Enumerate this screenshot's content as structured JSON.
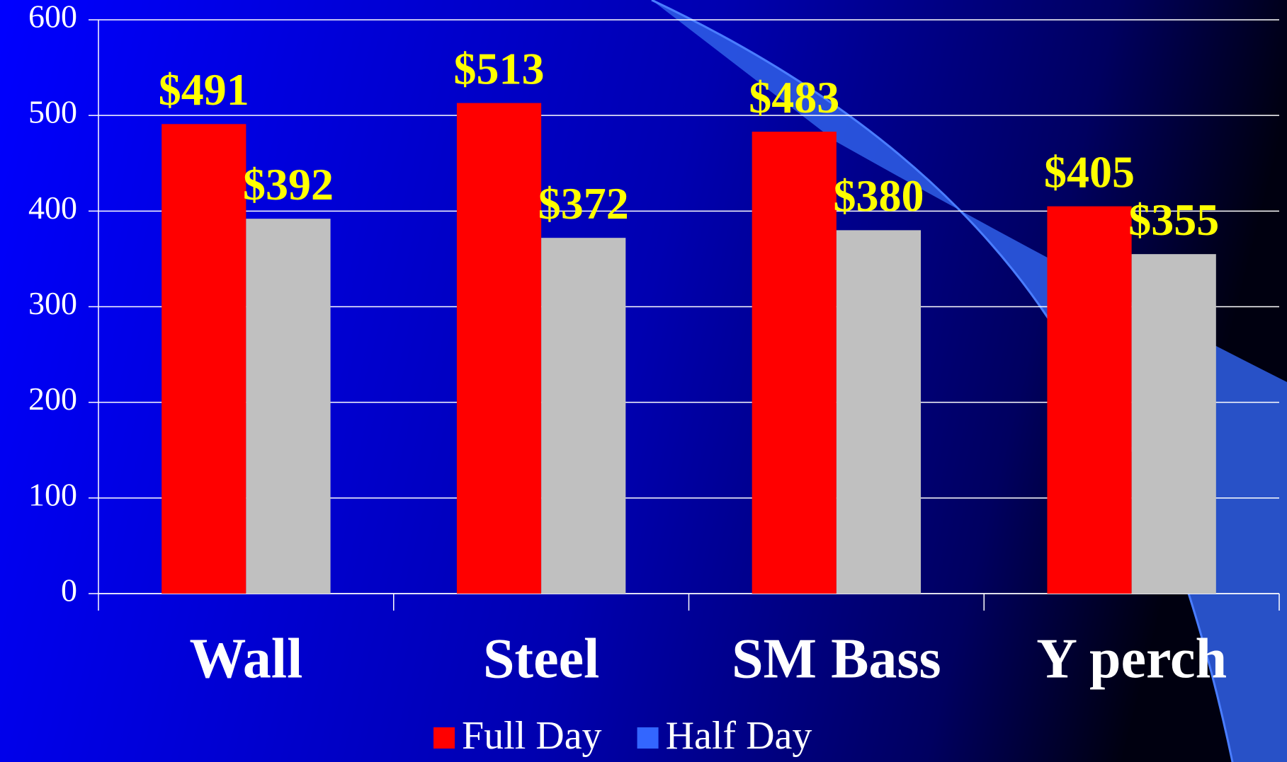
{
  "chart_data": {
    "type": "bar",
    "categories": [
      "Wall",
      "Steel",
      "SM Bass",
      "Y perch"
    ],
    "series": [
      {
        "name": "Full Day",
        "color": "#ff0000",
        "legend_color": "#ff0000",
        "values": [
          491,
          513,
          483,
          405
        ],
        "value_labels": [
          "$491",
          "$513",
          "$483",
          "$405"
        ]
      },
      {
        "name": "Half Day",
        "color": "#c0c0c0",
        "legend_color": "#3366ff",
        "values": [
          392,
          372,
          380,
          355
        ],
        "value_labels": [
          "$392",
          "$372",
          "$380",
          "$355"
        ]
      }
    ],
    "ylim": [
      0,
      600
    ],
    "yticks": [
      0,
      100,
      200,
      300,
      400,
      500,
      600
    ],
    "grid": true,
    "legend": "bottom"
  }
}
